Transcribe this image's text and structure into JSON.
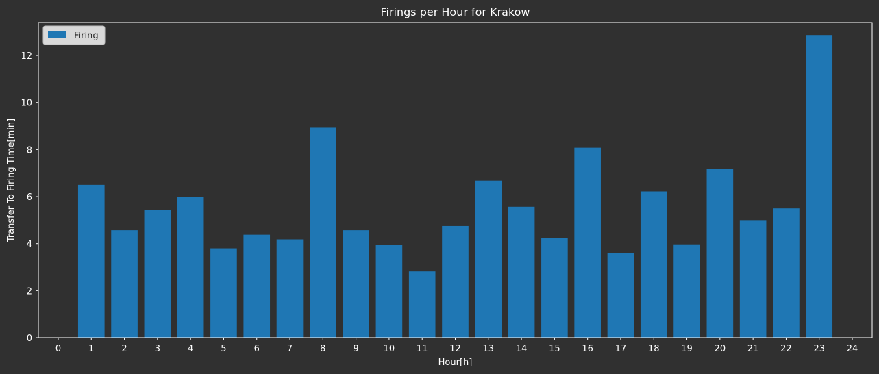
{
  "chart_data": {
    "type": "bar",
    "title": "Firings per Hour for Krakow",
    "xlabel": "Hour[h]",
    "ylabel": "Transfer To Firing Time[min]",
    "xlim": [
      -0.6,
      24.6
    ],
    "ylim": [
      0,
      13.4
    ],
    "xticks": [
      0,
      1,
      2,
      3,
      4,
      5,
      6,
      7,
      8,
      9,
      10,
      11,
      12,
      13,
      14,
      15,
      16,
      17,
      18,
      19,
      20,
      21,
      22,
      23,
      24
    ],
    "yticks": [
      0,
      2,
      4,
      6,
      8,
      10,
      12
    ],
    "grid": false,
    "legend_position": "top-left",
    "bar_color": "#1f77b4",
    "series": [
      {
        "name": "Firing",
        "x": [
          1,
          2,
          3,
          4,
          5,
          6,
          7,
          8,
          9,
          10,
          11,
          12,
          13,
          14,
          15,
          16,
          17,
          18,
          19,
          20,
          21,
          22,
          23
        ],
        "values": [
          6.5,
          4.57,
          5.42,
          5.98,
          3.8,
          4.38,
          4.18,
          8.93,
          4.57,
          3.95,
          2.82,
          4.75,
          6.68,
          5.57,
          4.23,
          8.08,
          3.6,
          6.22,
          3.97,
          7.18,
          5.0,
          5.5,
          12.87
        ]
      }
    ]
  }
}
